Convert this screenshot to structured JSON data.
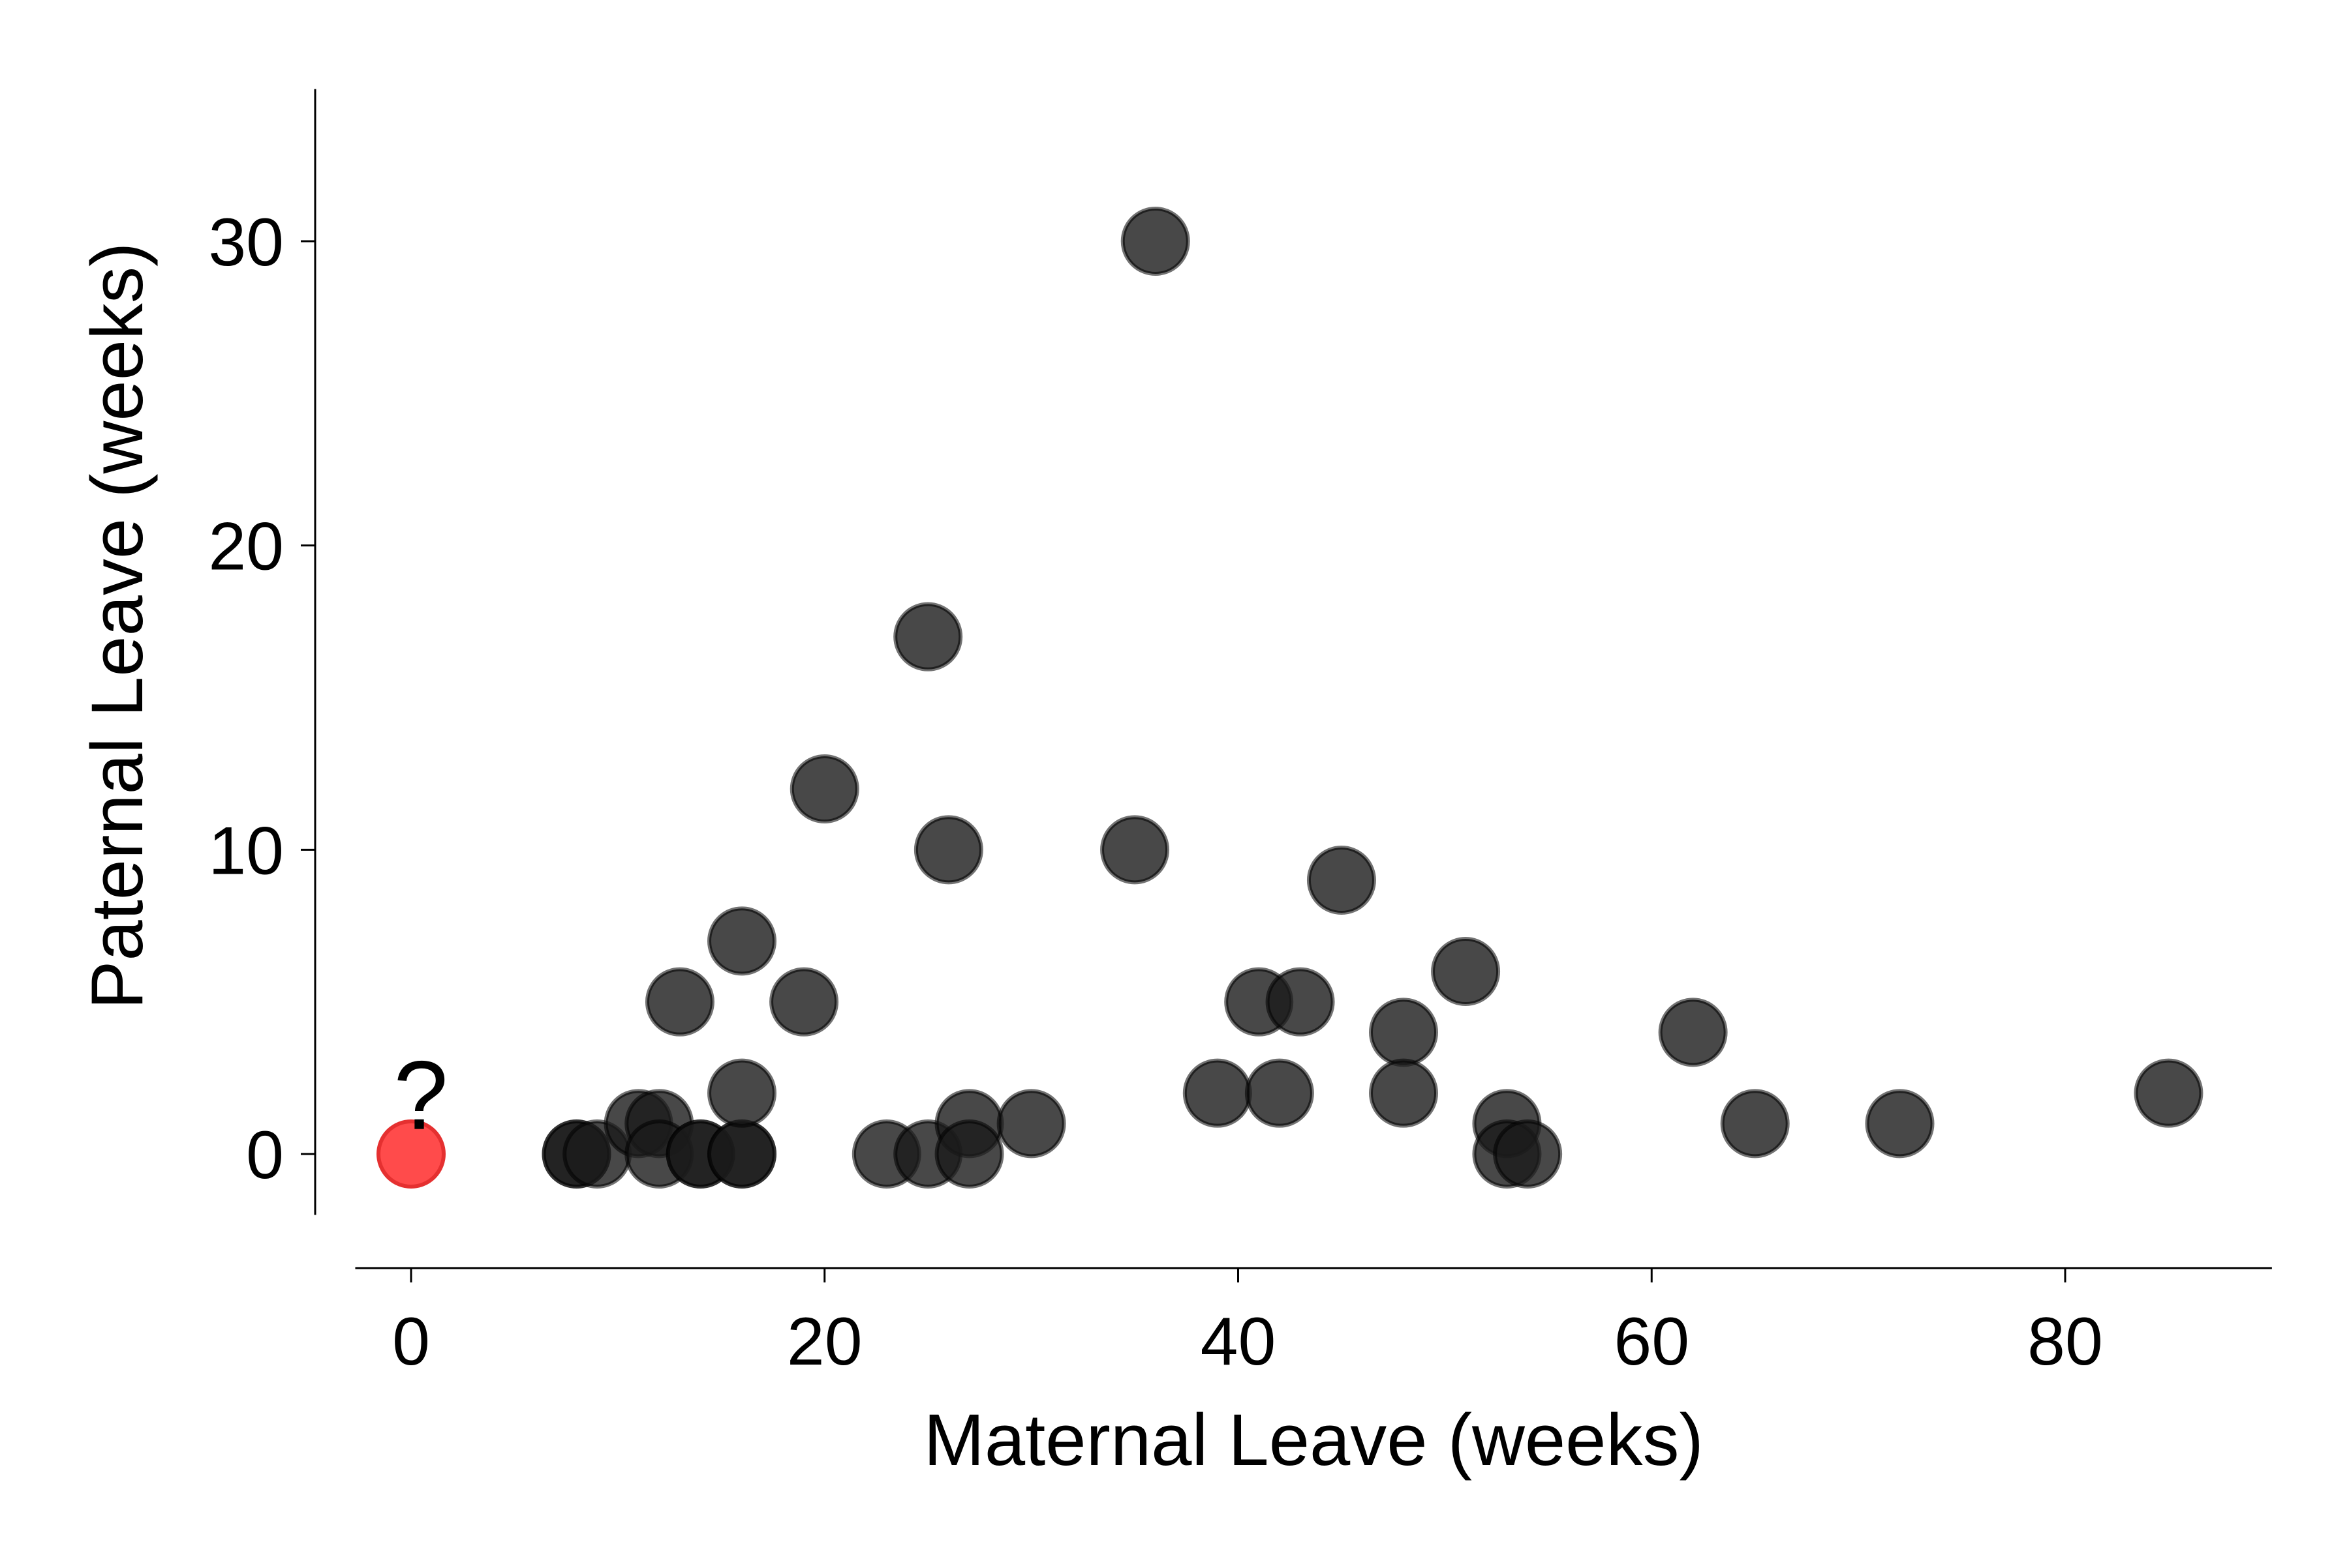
{
  "chart_data": {
    "type": "scatter",
    "title": "",
    "xlabel": "Maternal Leave (weeks)",
    "ylabel": "Paternal Leave (weeks)",
    "xlim": [
      -2.7,
      90
    ],
    "ylim": [
      -2,
      35
    ],
    "xticks": [
      0,
      20,
      40,
      60,
      80
    ],
    "yticks": [
      0,
      10,
      20,
      30
    ],
    "grid": false,
    "legend": "none",
    "point_color": "#1a1a1a",
    "point_opacity": 0.8,
    "highlight_color": "#ff4b4b",
    "points": [
      {
        "x": 8,
        "y": 0
      },
      {
        "x": 8,
        "y": 0
      },
      {
        "x": 9,
        "y": 0
      },
      {
        "x": 11,
        "y": 1
      },
      {
        "x": 12,
        "y": 1
      },
      {
        "x": 12,
        "y": 0
      },
      {
        "x": 13,
        "y": 5
      },
      {
        "x": 14,
        "y": 0
      },
      {
        "x": 14,
        "y": 0
      },
      {
        "x": 16,
        "y": 0
      },
      {
        "x": 16,
        "y": 0
      },
      {
        "x": 16,
        "y": 2
      },
      {
        "x": 16,
        "y": 7
      },
      {
        "x": 19,
        "y": 5
      },
      {
        "x": 20,
        "y": 12
      },
      {
        "x": 23,
        "y": 0
      },
      {
        "x": 25,
        "y": 0
      },
      {
        "x": 25,
        "y": 17
      },
      {
        "x": 26,
        "y": 10
      },
      {
        "x": 27,
        "y": 1
      },
      {
        "x": 27,
        "y": 0
      },
      {
        "x": 30,
        "y": 1
      },
      {
        "x": 35,
        "y": 10
      },
      {
        "x": 36,
        "y": 30
      },
      {
        "x": 39,
        "y": 2
      },
      {
        "x": 41,
        "y": 5
      },
      {
        "x": 42,
        "y": 2
      },
      {
        "x": 43,
        "y": 5
      },
      {
        "x": 45,
        "y": 9
      },
      {
        "x": 48,
        "y": 4
      },
      {
        "x": 48,
        "y": 2
      },
      {
        "x": 51,
        "y": 6
      },
      {
        "x": 53,
        "y": 1
      },
      {
        "x": 53,
        "y": 0
      },
      {
        "x": 54,
        "y": 0
      },
      {
        "x": 62,
        "y": 4
      },
      {
        "x": 65,
        "y": 1
      },
      {
        "x": 72,
        "y": 1
      },
      {
        "x": 85,
        "y": 2
      }
    ],
    "highlight_point": {
      "x": 0,
      "y": 0
    },
    "annotations": [
      {
        "text": "?",
        "x": 0,
        "y": 2
      }
    ]
  }
}
